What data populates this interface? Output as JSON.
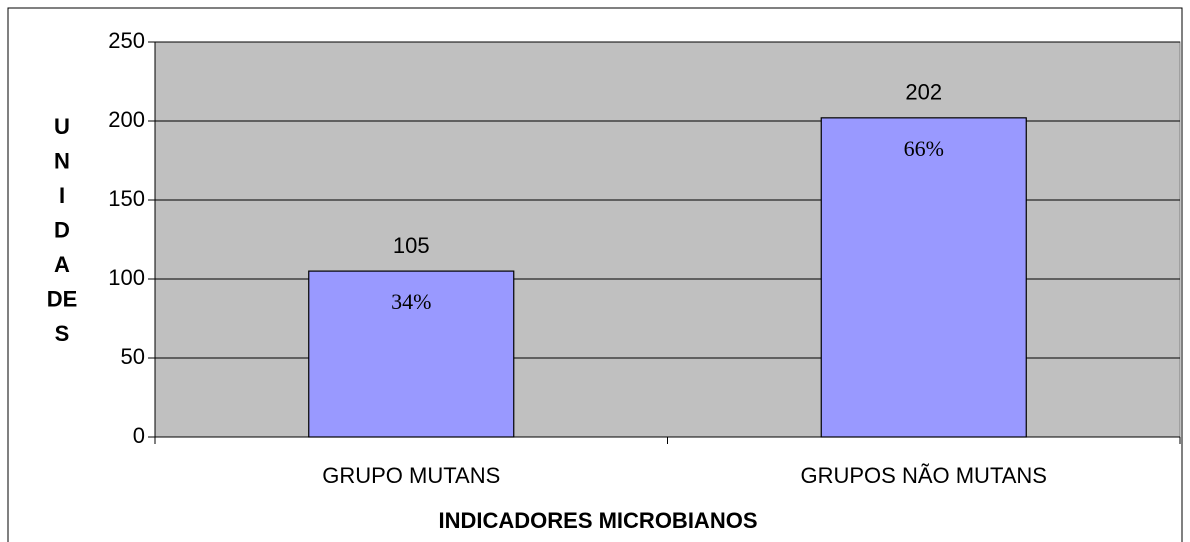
{
  "chart_data": {
    "type": "bar",
    "categories": [
      "GRUPO MUTANS",
      "GRUPOS NÃO MUTANS"
    ],
    "values": [
      105,
      202
    ],
    "percent_labels": [
      "34%",
      "66%"
    ],
    "color": "#9999ff",
    "plot_background": "#c0c0c0",
    "ylim": [
      0,
      250
    ],
    "yticks": [
      0,
      50,
      100,
      150,
      200,
      250
    ],
    "grid": true,
    "xlabel": "INDICADORES MICROBIANOS",
    "ylabel": [
      "U",
      "N",
      "I",
      "D",
      "A",
      "DE",
      "S"
    ]
  }
}
